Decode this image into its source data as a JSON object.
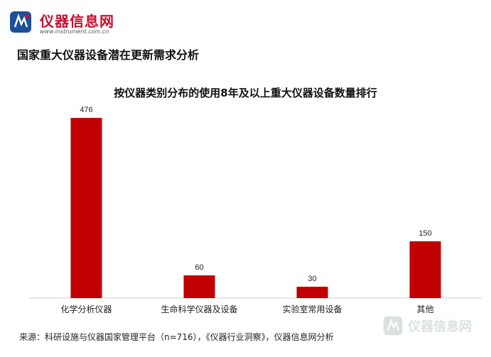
{
  "brand": {
    "name": "仪器信息网",
    "url": "www.instrument.com.cn",
    "color": "#c8102e"
  },
  "headline": "国家重大仪器设备潜在更新需求分析",
  "source": "来源：科研设施与仪器国家管理平台（n=716），《仪器行业洞察》，仪器信息网分析",
  "chart_data": {
    "type": "bar",
    "title": "按仪器类别分布的使用8年及以上重大仪器设备数量排行",
    "categories": [
      "化学分析仪器",
      "生命科学仪器及设备",
      "实验室常用设备",
      "其他"
    ],
    "values": [
      476,
      60,
      30,
      150
    ],
    "bar_color": "#c00000",
    "ylim": [
      0,
      480
    ],
    "grid": false,
    "legend": "none"
  }
}
